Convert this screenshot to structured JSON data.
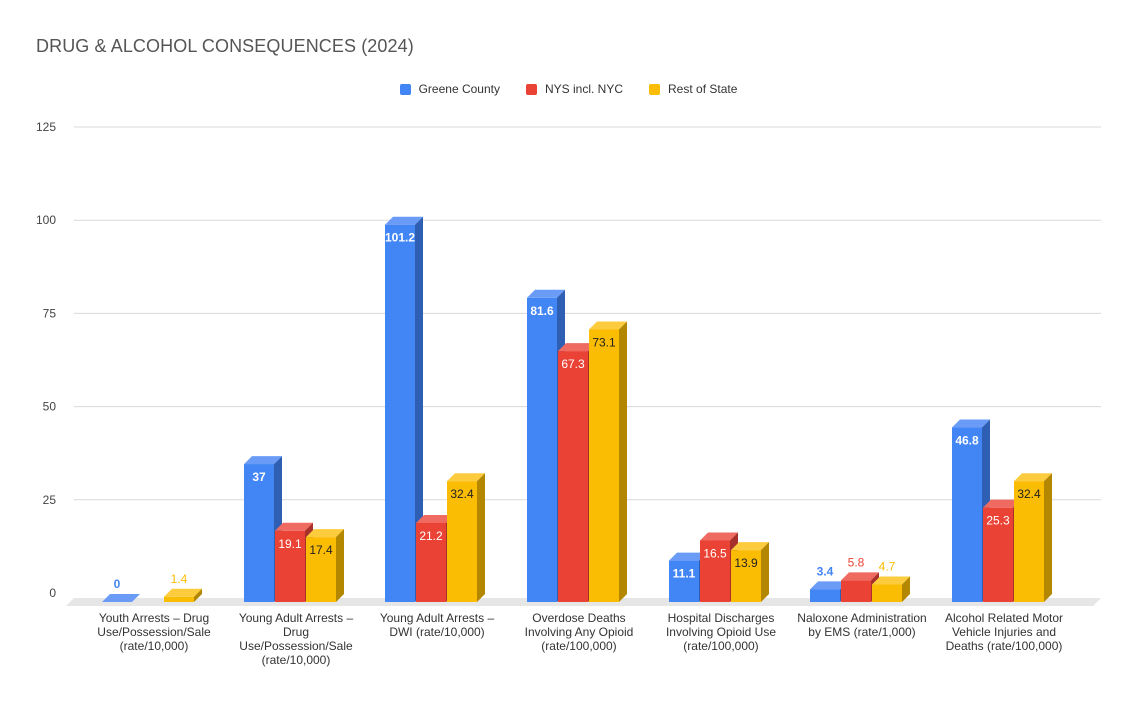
{
  "chart_data": {
    "type": "bar",
    "title": "DRUG & ALCOHOL CONSEQUENCES (2024)",
    "categories": [
      "Youth Arrests – Drug Use/Possession/Sale (rate/10,000)",
      "Young Adult Arrests – Drug Use/Possession/Sale (rate/10,000)",
      "Young Adult Arrests – DWI (rate/10,000)",
      "Overdose Deaths Involving Any Opioid (rate/100,000)",
      "Hospital Discharges Involving Opioid Use (rate/100,000)",
      "Naloxone Administration by EMS (rate/1,000)",
      "Alcohol Related Motor Vehicle Injuries and Deaths (rate/100,000)"
    ],
    "series": [
      {
        "name": "Greene County",
        "color": "#4285f4",
        "side": "#2f5fb3",
        "top": "#6a9cf7",
        "label_color": "#ffffff",
        "outside_label_color": "#4285f4",
        "values": [
          0,
          37,
          101.2,
          81.6,
          11.1,
          3.4,
          46.8
        ],
        "labels": [
          "0",
          "37",
          "101.2",
          "81.6",
          "11.1",
          "3.4",
          "46.8"
        ]
      },
      {
        "name": "NYS incl. NYC",
        "color": "#ea4335",
        "side": "#a8302a",
        "top": "#ef6b61",
        "label_color": "#ffffff",
        "outside_label_color": "#ea4335",
        "values": [
          null,
          19.1,
          21.2,
          67.3,
          16.5,
          5.8,
          25.3
        ],
        "labels": [
          "",
          "19.1",
          "21.2",
          "67.3",
          "16.5",
          "5.8",
          "25.3"
        ]
      },
      {
        "name": "Rest of State",
        "color": "#fbbc04",
        "side": "#b38700",
        "top": "#fccc3e",
        "label_color": "#222222",
        "outside_label_color": "#fbbc04",
        "values": [
          1.4,
          17.4,
          32.4,
          73.1,
          13.9,
          4.7,
          32.4
        ],
        "labels": [
          "1.4",
          "17.4",
          "32.4",
          "73.1",
          "13.9",
          "4.7",
          "32.4"
        ]
      }
    ],
    "yticks": [
      "0",
      "25",
      "50",
      "75",
      "100",
      "125"
    ],
    "ylim": [
      0,
      125
    ],
    "grid": true,
    "legend_position": "top-center"
  }
}
